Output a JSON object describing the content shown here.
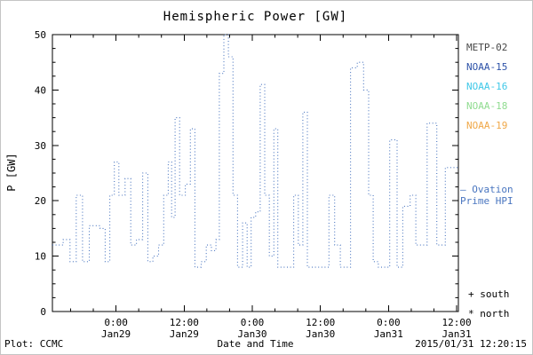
{
  "title": "Hemispheric Power [GW]",
  "footer": {
    "plot_credit": "Plot: CCMC",
    "timestamp": "2015/01/31 12:20:15"
  },
  "legend": {
    "satellites": [
      {
        "label": "METP-02",
        "color": "#474747"
      },
      {
        "label": "NOAA-15",
        "color": "#2d52a8"
      },
      {
        "label": "NOAA-16",
        "color": "#3fc8e8"
      },
      {
        "label": "NOAA-18",
        "color": "#90dc90"
      },
      {
        "label": "NOAA-19",
        "color": "#f0a848"
      }
    ],
    "line_label_1": "– Ovation",
    "line_label_2": "Prime HPI",
    "line_color": "#4a76c0",
    "south_marker": "+ south",
    "north_marker": "* north"
  },
  "chart_data": {
    "type": "line",
    "title": "Hemispheric Power [GW]",
    "xlabel": "Date and Time",
    "ylabel": "P [GW]",
    "ylim": [
      0,
      50
    ],
    "grid": false,
    "legend_position": "right-outside",
    "y_ticks": [
      0,
      10,
      20,
      30,
      40,
      50
    ],
    "x_ticks": [
      {
        "hour": 24,
        "time": "0:00",
        "date": "Jan29"
      },
      {
        "hour": 36,
        "time": "12:00",
        "date": "Jan29"
      },
      {
        "hour": 48,
        "time": "0:00",
        "date": "Jan30"
      },
      {
        "hour": 60,
        "time": "12:00",
        "date": "Jan30"
      },
      {
        "hour": 72,
        "time": "0:00",
        "date": "Jan31"
      },
      {
        "hour": 84,
        "time": "12:00",
        "date": "Jan31"
      }
    ],
    "x_range_hours": [
      12.8,
      84.3
    ],
    "x_minor_step_hours": 4,
    "y_minor_step": 2.5,
    "series": [
      {
        "name": "Ovation Prime HPI",
        "style": "dotted-step",
        "color": "#4a76c0",
        "steps": [
          [
            12.8,
            12
          ],
          [
            14.7,
            13
          ],
          [
            15.9,
            9
          ],
          [
            17.0,
            21
          ],
          [
            18.1,
            9
          ],
          [
            19.3,
            15.5
          ],
          [
            21.2,
            15
          ],
          [
            22.1,
            9
          ],
          [
            22.9,
            21
          ],
          [
            23.7,
            27
          ],
          [
            24.5,
            21
          ],
          [
            25.6,
            24
          ],
          [
            26.6,
            12
          ],
          [
            27.6,
            13
          ],
          [
            28.7,
            25
          ],
          [
            29.6,
            9
          ],
          [
            30.5,
            10
          ],
          [
            31.5,
            12
          ],
          [
            32.4,
            21
          ],
          [
            33.2,
            27
          ],
          [
            33.8,
            17
          ],
          [
            34.4,
            35
          ],
          [
            35.2,
            21
          ],
          [
            36.2,
            23
          ],
          [
            37.1,
            33
          ],
          [
            37.9,
            8
          ],
          [
            39.0,
            9
          ],
          [
            39.9,
            12
          ],
          [
            40.8,
            11
          ],
          [
            41.6,
            13
          ],
          [
            42.2,
            43
          ],
          [
            43.0,
            50
          ],
          [
            43.8,
            46
          ],
          [
            44.6,
            21
          ],
          [
            45.4,
            8
          ],
          [
            46.3,
            16
          ],
          [
            47.1,
            8
          ],
          [
            47.8,
            17
          ],
          [
            48.6,
            18
          ],
          [
            49.4,
            41
          ],
          [
            50.2,
            21
          ],
          [
            51.0,
            10
          ],
          [
            51.8,
            33
          ],
          [
            52.5,
            8
          ],
          [
            54.4,
            8
          ],
          [
            55.3,
            21
          ],
          [
            56.1,
            12
          ],
          [
            56.9,
            36
          ],
          [
            57.7,
            8
          ],
          [
            59.4,
            8
          ],
          [
            61.5,
            21
          ],
          [
            62.5,
            12
          ],
          [
            63.5,
            8
          ],
          [
            65.3,
            44
          ],
          [
            66.5,
            45
          ],
          [
            67.6,
            40
          ],
          [
            68.5,
            21
          ],
          [
            69.3,
            9
          ],
          [
            70.2,
            8
          ],
          [
            72.2,
            31
          ],
          [
            73.5,
            8
          ],
          [
            74.5,
            19
          ],
          [
            75.8,
            21
          ],
          [
            76.8,
            12
          ],
          [
            78.8,
            34
          ],
          [
            80.5,
            12
          ],
          [
            82.0,
            26
          ],
          [
            84.3,
            26
          ]
        ]
      }
    ]
  }
}
